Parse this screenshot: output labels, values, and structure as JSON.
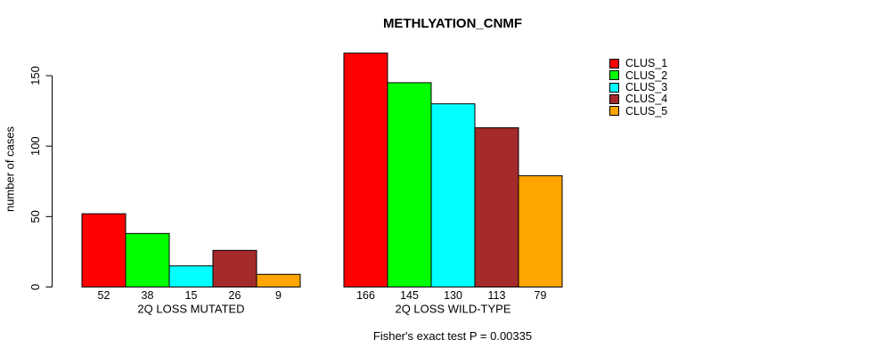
{
  "chart_data": {
    "type": "bar",
    "title": "METHLYATION_CNMF",
    "subtitle": "Fisher's exact test P = 0.00335",
    "ylabel": "number of cases",
    "xlabel": "",
    "categories": [
      "2Q LOSS MUTATED",
      "2Q LOSS WILD-TYPE"
    ],
    "groups": [
      {
        "label": "2Q LOSS MUTATED",
        "values": [
          52,
          38,
          15,
          26,
          9
        ]
      },
      {
        "label": "2Q LOSS WILD-TYPE",
        "values": [
          166,
          145,
          130,
          113,
          79
        ]
      }
    ],
    "series": [
      {
        "name": "CLUS_1",
        "color": "#FF0000",
        "values": [
          52,
          166
        ]
      },
      {
        "name": "CLUS_2",
        "color": "#00FF00",
        "values": [
          38,
          145
        ]
      },
      {
        "name": "CLUS_3",
        "color": "#00FFFF",
        "values": [
          15,
          130
        ]
      },
      {
        "name": "CLUS_4",
        "color": "#A52A2A",
        "values": [
          26,
          113
        ]
      },
      {
        "name": "CLUS_5",
        "color": "#FFA500",
        "values": [
          9,
          79
        ]
      }
    ],
    "yticks": [
      0,
      50,
      100,
      150
    ],
    "ylim": [
      0,
      175
    ],
    "grid": false,
    "legend_position": "topright",
    "bar_value_labels": true,
    "axis_color": "#000000",
    "bar_border_color": "#000000"
  }
}
